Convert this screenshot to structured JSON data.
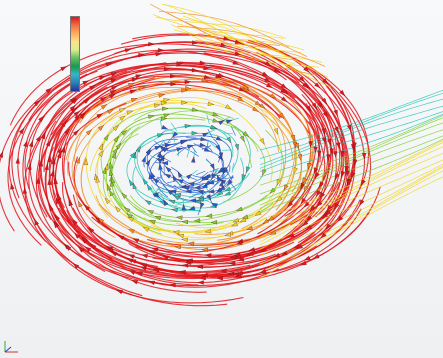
{
  "legend": {
    "title": "",
    "colors": [
      "#d7191c",
      "#f46d43",
      "#fdae61",
      "#fee08b",
      "#d9ef8b",
      "#66bd63",
      "#1a9850",
      "#35b7c8",
      "#2c7fb8",
      "#253494"
    ],
    "ticks": [
      "",
      "",
      "",
      "",
      "",
      "",
      "",
      "",
      "",
      ""
    ]
  },
  "flow": {
    "colors": {
      "high": "#e2141b",
      "mid_high": "#f28a1e",
      "mid": "#f2d51a",
      "mid_low": "#7ccf2c",
      "low": "#21c4b4",
      "lowest": "#1d5ed6"
    }
  },
  "triad": {
    "icon": "coordinate-triad-icon"
  }
}
